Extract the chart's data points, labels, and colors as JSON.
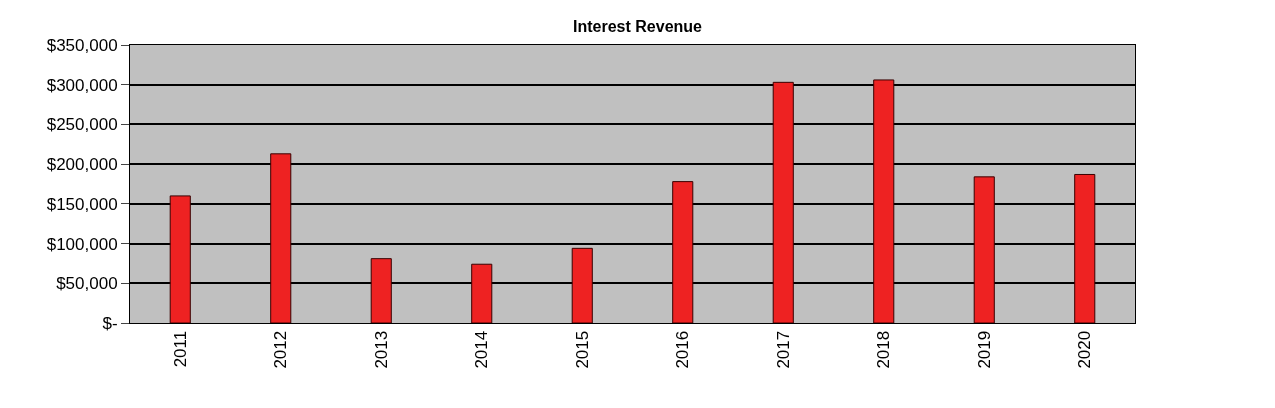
{
  "chart_data": {
    "type": "bar",
    "title": "Interest Revenue",
    "categories": [
      "2011",
      "2012",
      "2013",
      "2014",
      "2015",
      "2016",
      "2017",
      "2018",
      "2019",
      "2020"
    ],
    "values": [
      160000,
      213000,
      81000,
      74000,
      94000,
      178000,
      303000,
      306000,
      184000,
      187000
    ],
    "color": "#ee2222",
    "ylim": [
      0,
      350000
    ],
    "yticks": [
      {
        "value": 0,
        "label": "$-"
      },
      {
        "value": 50000,
        "label": "$50,000"
      },
      {
        "value": 100000,
        "label": "$100,000"
      },
      {
        "value": 150000,
        "label": "$150,000"
      },
      {
        "value": 200000,
        "label": "$200,000"
      },
      {
        "value": 250000,
        "label": "$250,000"
      },
      {
        "value": 300000,
        "label": "$300,000"
      },
      {
        "value": 350000,
        "label": "$350,000"
      }
    ],
    "grid": "y"
  }
}
